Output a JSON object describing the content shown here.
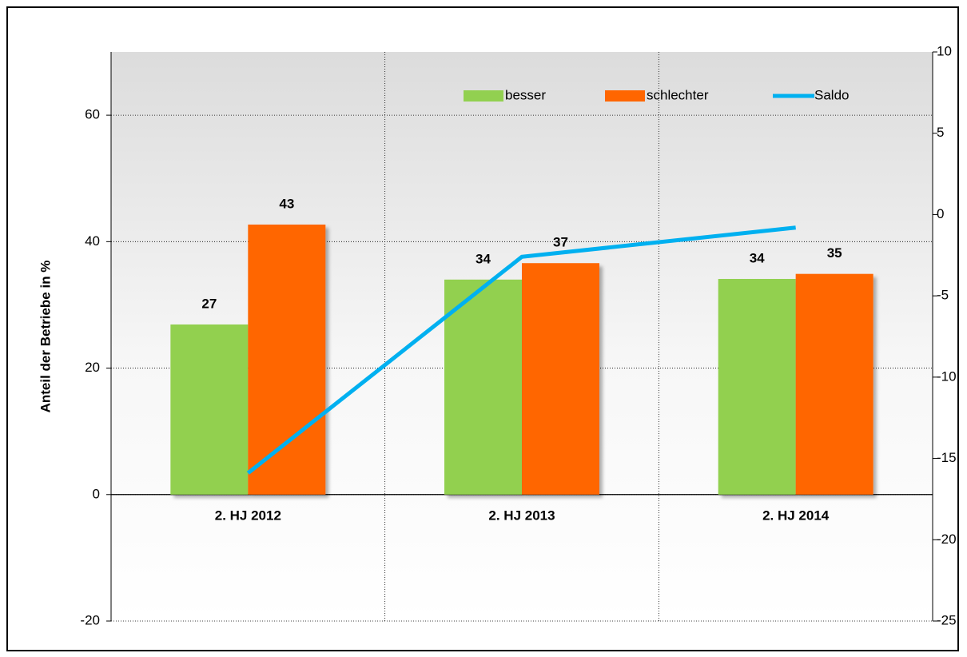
{
  "chart_data": {
    "type": "bar",
    "y_axis_label": "Anteil der Betriebe in %",
    "categories": [
      "2. HJ 2012",
      "2. HJ 2013",
      "2. HJ 2014"
    ],
    "series": [
      {
        "name": "besser",
        "color": "#92d050",
        "values": [
          26.9,
          34.0,
          34.1
        ],
        "value_labels": [
          "27",
          "34",
          "34"
        ]
      },
      {
        "name": "schlechter",
        "color": "#ff6600",
        "values": [
          42.7,
          36.6,
          34.9
        ],
        "value_labels": [
          "43",
          "37",
          "35"
        ]
      },
      {
        "name": "Saldo",
        "type": "line",
        "axis": "y2",
        "color": "#00b0f0",
        "values": [
          -15.9,
          -2.6,
          -0.8
        ]
      }
    ],
    "ylim": [
      -20,
      70
    ],
    "yticks": [
      -20,
      0,
      20,
      40,
      60
    ],
    "y2lim": [
      -25,
      10
    ],
    "y2ticks": [
      -25,
      -20,
      -15,
      -10,
      -5,
      0,
      5,
      10
    ],
    "grid": true,
    "legend": "top-right"
  }
}
